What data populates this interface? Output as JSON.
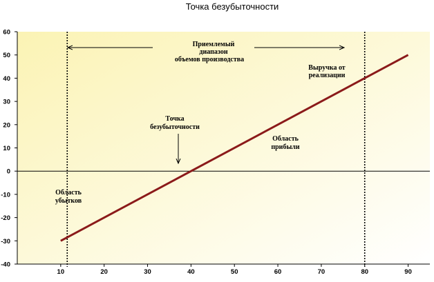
{
  "chart_data": {
    "type": "line",
    "title": "Точка безубыточности",
    "xlabel": "",
    "ylabel": "",
    "xlim": [
      0,
      95
    ],
    "ylim": [
      -40,
      60
    ],
    "xticks": [
      10,
      20,
      30,
      40,
      50,
      60,
      70,
      80,
      90
    ],
    "yticks": [
      -40,
      -30,
      -20,
      -10,
      0,
      10,
      20,
      30,
      40,
      50,
      60
    ],
    "grid": false,
    "background_gradient": [
      "#fbf3b4",
      "#ffffff"
    ],
    "series": [
      {
        "x": [
          10,
          90
        ],
        "y": [
          -30,
          50
        ],
        "color": "#8b1a1a"
      }
    ],
    "reference_lines": [
      {
        "orientation": "vertical",
        "x": 11.5,
        "style": "dotted"
      },
      {
        "orientation": "vertical",
        "x": 80,
        "style": "dotted"
      }
    ],
    "annotations": {
      "range": [
        "Приемлемый",
        "диапазон",
        "объемов производства"
      ],
      "breakeven": [
        "Точка",
        "безубыточности"
      ],
      "revenue": [
        "Выручка от",
        "реализации"
      ],
      "profit": [
        "Область",
        "прибыли"
      ],
      "loss": [
        "Область",
        "убытков"
      ]
    }
  }
}
